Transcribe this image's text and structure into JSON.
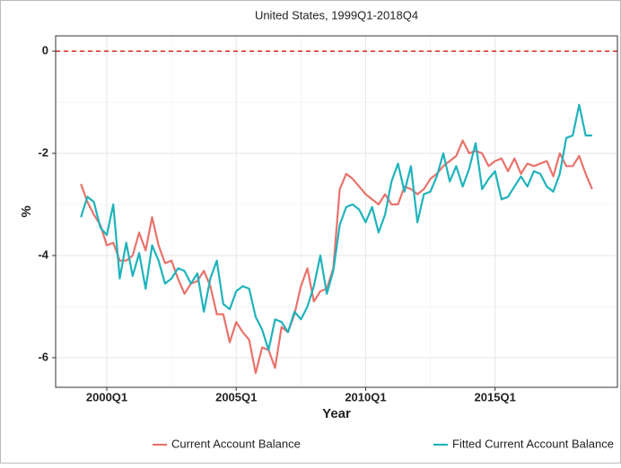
{
  "chart_data": {
    "type": "line",
    "title": "United States, 1999Q1-2018Q4",
    "x_label": "Year",
    "y_label": "%",
    "categories": [
      null,
      null,
      null,
      null,
      "2000Q1",
      null,
      null,
      null,
      null,
      null,
      null,
      null,
      null,
      null,
      null,
      null,
      null,
      null,
      null,
      null,
      null,
      null,
      null,
      null,
      "2005Q1",
      null,
      null,
      null,
      null,
      null,
      null,
      null,
      null,
      null,
      null,
      null,
      null,
      null,
      null,
      null,
      null,
      null,
      null,
      null,
      "2010Q1",
      null,
      null,
      null,
      null,
      null,
      null,
      null,
      null,
      null,
      null,
      null,
      null,
      null,
      null,
      null,
      null,
      null,
      null,
      null,
      "2015Q1",
      null,
      null,
      null,
      null,
      null,
      null,
      null,
      null,
      null,
      null,
      null,
      null,
      null,
      null,
      null
    ],
    "series": [
      {
        "name": "Current Account Balance",
        "color": "#e8736b",
        "values": [
          -2.6,
          -2.95,
          -3.2,
          -3.4,
          -3.8,
          -3.75,
          -4.1,
          -4.1,
          -4.0,
          -3.55,
          -3.9,
          -3.25,
          -3.8,
          -4.15,
          -4.1,
          -4.45,
          -4.75,
          -4.55,
          -4.5,
          -4.3,
          -4.6,
          -5.15,
          -5.15,
          -5.7,
          -5.3,
          -5.5,
          -5.65,
          -6.3,
          -5.8,
          -5.85,
          -6.2,
          -5.4,
          -5.5,
          -5.15,
          -4.6,
          -4.25,
          -4.9,
          -4.7,
          -4.65,
          -4.25,
          -2.7,
          -2.4,
          -2.5,
          -2.65,
          -2.8,
          -2.9,
          -3.0,
          -2.8,
          -3.0,
          -3.0,
          -2.65,
          -2.7,
          -2.8,
          -2.7,
          -2.5,
          -2.4,
          -2.25,
          -2.15,
          -2.05,
          -1.75,
          -2.0,
          -1.95,
          -2.0,
          -2.25,
          -2.15,
          -2.1,
          -2.35,
          -2.1,
          -2.4,
          -2.2,
          -2.25,
          -2.2,
          -2.15,
          -2.45,
          -2.0,
          -2.25,
          -2.25,
          -2.05,
          -2.4,
          -2.7
        ]
      },
      {
        "name": "Fitted Current Account Balance",
        "color": "#1fb3bc",
        "values": [
          -3.25,
          -2.85,
          -2.95,
          -3.45,
          -3.6,
          -3.0,
          -4.45,
          -3.75,
          -4.4,
          -3.95,
          -4.65,
          -3.8,
          -4.1,
          -4.55,
          -4.45,
          -4.25,
          -4.3,
          -4.55,
          -4.35,
          -5.1,
          -4.45,
          -4.1,
          -4.95,
          -5.05,
          -4.7,
          -4.6,
          -4.65,
          -5.2,
          -5.45,
          -5.85,
          -5.25,
          -5.3,
          -5.5,
          -5.1,
          -5.25,
          -5.0,
          -4.6,
          -4.0,
          -4.75,
          -4.3,
          -3.4,
          -3.05,
          -3.0,
          -3.1,
          -3.35,
          -3.05,
          -3.55,
          -3.2,
          -2.55,
          -2.2,
          -2.75,
          -2.25,
          -3.35,
          -2.8,
          -2.75,
          -2.45,
          -2.0,
          -2.55,
          -2.25,
          -2.65,
          -2.3,
          -1.8,
          -2.7,
          -2.5,
          -2.35,
          -2.9,
          -2.85,
          -2.65,
          -2.45,
          -2.65,
          -2.35,
          -2.4,
          -2.65,
          -2.75,
          -2.4,
          -1.7,
          -1.65,
          -1.05,
          -1.65,
          -1.65
        ]
      }
    ],
    "ylim": [
      -6.58,
      0.3
    ],
    "yticks": [
      0,
      -2,
      -4,
      -6
    ],
    "grid": true,
    "hline": {
      "value": 0,
      "color": "#d62728"
    },
    "legend": "bottom"
  }
}
